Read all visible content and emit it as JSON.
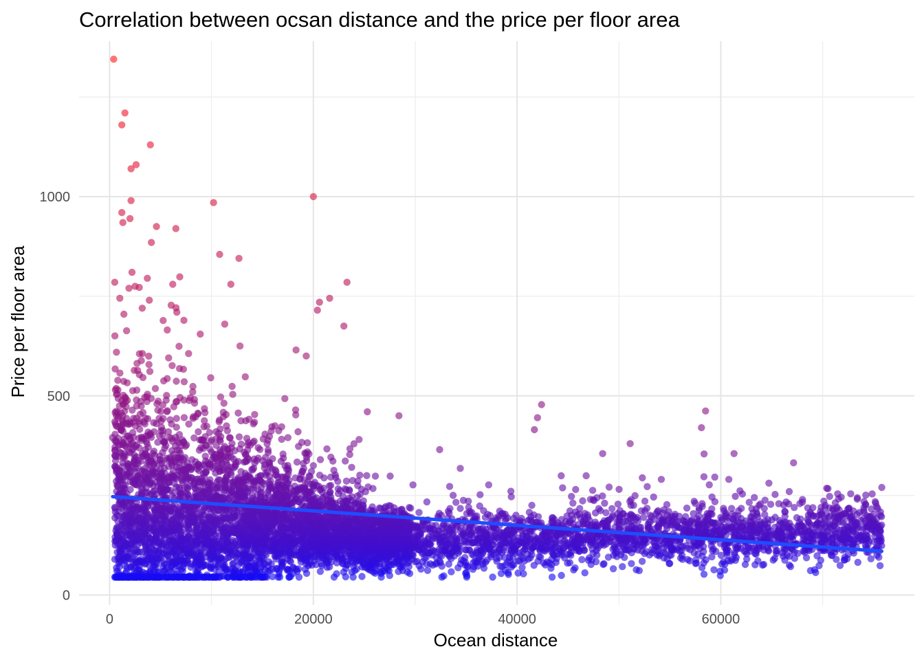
{
  "chart_data": {
    "type": "scatter",
    "title": "Correlation between ocsan distance and the price per floor area",
    "xlabel": "Ocean distance",
    "ylabel": "Price per floor area",
    "xlim": [
      -3000,
      79000
    ],
    "ylim": [
      -25,
      1390
    ],
    "x_ticks": [
      0,
      20000,
      40000,
      60000
    ],
    "y_ticks": [
      0,
      500,
      1000
    ],
    "x_tick_labels": [
      "0",
      "20000",
      "40000",
      "60000"
    ],
    "y_tick_labels": [
      "0",
      "500",
      "1000"
    ],
    "grid": true,
    "legend": "none",
    "point_color_low": "#0a0aff",
    "point_color_high": "#ff2020",
    "point_opacity": 0.62,
    "trend_line": {
      "x": [
        300,
        75800
      ],
      "y": [
        247,
        110
      ],
      "color": "#1f4cff"
    },
    "highlighted_points": [
      {
        "x": 400,
        "y": 1345
      },
      {
        "x": 1500,
        "y": 1210
      },
      {
        "x": 1200,
        "y": 1180
      },
      {
        "x": 4000,
        "y": 1130
      },
      {
        "x": 2600,
        "y": 1080
      },
      {
        "x": 2100,
        "y": 1070
      },
      {
        "x": 20000,
        "y": 1000
      },
      {
        "x": 2100,
        "y": 990
      },
      {
        "x": 10200,
        "y": 985
      },
      {
        "x": 1200,
        "y": 960
      },
      {
        "x": 2000,
        "y": 945
      },
      {
        "x": 1300,
        "y": 935
      },
      {
        "x": 4600,
        "y": 925
      },
      {
        "x": 6500,
        "y": 920
      },
      {
        "x": 4100,
        "y": 885
      },
      {
        "x": 10800,
        "y": 855
      },
      {
        "x": 12700,
        "y": 845
      },
      {
        "x": 2200,
        "y": 810
      },
      {
        "x": 3700,
        "y": 795
      },
      {
        "x": 500,
        "y": 785
      },
      {
        "x": 6200,
        "y": 780
      },
      {
        "x": 11900,
        "y": 780
      },
      {
        "x": 23300,
        "y": 785
      },
      {
        "x": 2500,
        "y": 775
      },
      {
        "x": 1900,
        "y": 770
      },
      {
        "x": 1000,
        "y": 745
      },
      {
        "x": 3900,
        "y": 740
      },
      {
        "x": 21600,
        "y": 745
      },
      {
        "x": 20600,
        "y": 735
      },
      {
        "x": 20400,
        "y": 715
      },
      {
        "x": 6600,
        "y": 710
      },
      {
        "x": 1400,
        "y": 705
      },
      {
        "x": 3200,
        "y": 720
      },
      {
        "x": 11300,
        "y": 680
      },
      {
        "x": 23000,
        "y": 675
      },
      {
        "x": 8900,
        "y": 655
      },
      {
        "x": 12800,
        "y": 625
      },
      {
        "x": 18300,
        "y": 615
      },
      {
        "x": 19300,
        "y": 600
      },
      {
        "x": 42400,
        "y": 478
      },
      {
        "x": 42000,
        "y": 445
      },
      {
        "x": 41700,
        "y": 415
      },
      {
        "x": 58500,
        "y": 462
      },
      {
        "x": 58100,
        "y": 420
      },
      {
        "x": 28400,
        "y": 450
      },
      {
        "x": 25300,
        "y": 460
      },
      {
        "x": 51100,
        "y": 380
      },
      {
        "x": 32400,
        "y": 365
      },
      {
        "x": 48400,
        "y": 355
      },
      {
        "x": 61300,
        "y": 355
      },
      {
        "x": 75800,
        "y": 270
      },
      {
        "x": 300,
        "y": 395
      },
      {
        "x": 500,
        "y": 220
      },
      {
        "x": 1200,
        "y": 175
      },
      {
        "x": 8000,
        "y": 78
      },
      {
        "x": 37600,
        "y": 45
      },
      {
        "x": 32800,
        "y": 48
      },
      {
        "x": 40100,
        "y": 55
      },
      {
        "x": 64100,
        "y": 75
      },
      {
        "x": 57600,
        "y": 80
      }
    ]
  }
}
